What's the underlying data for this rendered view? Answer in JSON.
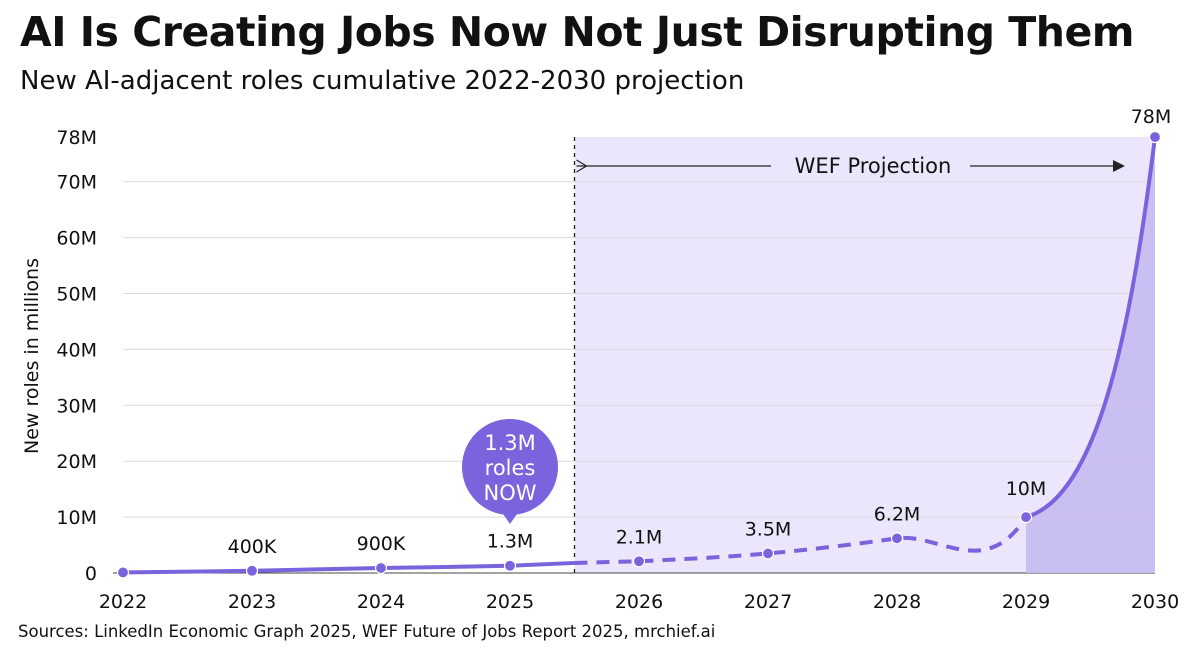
{
  "title": "AI Is Creating Jobs Now Not Just Disrupting Them",
  "subtitle": "New AI-adjacent roles cumulative 2022-2030 projection",
  "source": "Sources: LinkedIn Economic Graph 2025, WEF Future of Jobs Report 2025, mrchief.ai",
  "colors": {
    "line": "#7a63dd",
    "projection_fill": "#ebe6fc",
    "area_fill": "#c7baf2",
    "bubble": "#7a63dd",
    "grid": "#d9d9d9"
  },
  "chart_data": {
    "type": "line",
    "title": "AI Is Creating Jobs Now Not Just Disrupting Them",
    "subtitle": "New AI-adjacent roles cumulative 2022-2030 projection",
    "xlabel": "",
    "ylabel": "New roles in millions",
    "ylim": [
      0,
      78
    ],
    "y_ticks": [
      0,
      10,
      20,
      30,
      40,
      50,
      60,
      70,
      78
    ],
    "y_tick_labels": [
      "0",
      "10M",
      "20M",
      "30M",
      "40M",
      "50M",
      "60M",
      "70M",
      "78M"
    ],
    "x": [
      2022,
      2023,
      2024,
      2025,
      2026,
      2027,
      2028,
      2029,
      2030
    ],
    "x_tick_labels": [
      "2022",
      "2023",
      "2024",
      "2025",
      "2026",
      "2027",
      "2028",
      "2029",
      "2030"
    ],
    "values": [
      0.1,
      0.4,
      0.9,
      1.3,
      2.1,
      3.5,
      6.2,
      10,
      78
    ],
    "data_labels": [
      "",
      "400K",
      "900K",
      "1.3M",
      "2.1M",
      "3.5M",
      "6.2M",
      "10M",
      "78M"
    ],
    "actual_until": 2025,
    "projection_start": 2025.5,
    "projection_label": "WEF Projection",
    "grid": true,
    "callout": {
      "x": 2025,
      "lines": [
        "1.3M",
        "roles",
        "NOW"
      ]
    }
  }
}
